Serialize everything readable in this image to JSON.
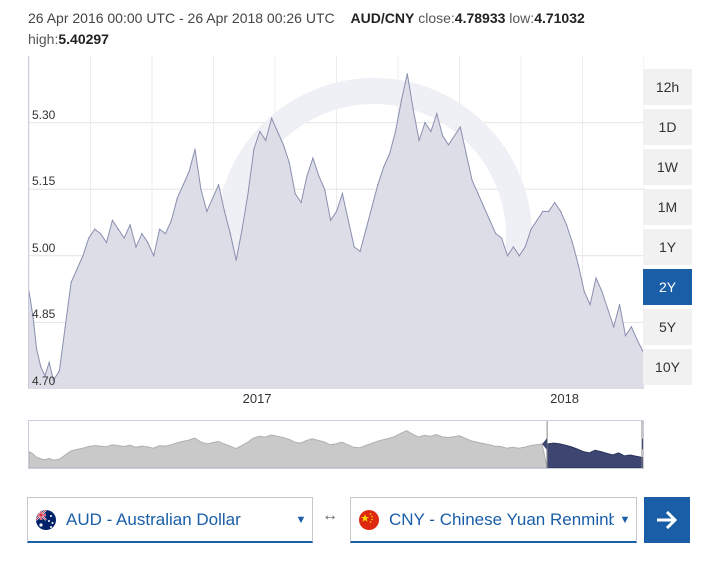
{
  "header": {
    "date_range": "26 Apr 2016 00:00 UTC - 26 Apr 2018 00:26 UTC",
    "pair": "AUD/CNY",
    "close_label": "close:",
    "close_value": "4.78933",
    "low_label": "low:",
    "low_value": "4.71032",
    "high_label": "high:",
    "high_value": "5.40297"
  },
  "range_buttons": [
    "12h",
    "1D",
    "1W",
    "1M",
    "1Y",
    "2Y",
    "5Y",
    "10Y"
  ],
  "active_range": "2Y",
  "from_currency": {
    "label": "AUD - Australian Dollar"
  },
  "to_currency": {
    "label": "CNY - Chinese Yuan Renminbi"
  },
  "swap_symbol": "↔",
  "colors": {
    "accent": "#1a5ea8",
    "area_fill": "#dcdde6",
    "line": "#8a8fb0"
  },
  "chart_data": {
    "type": "area",
    "title": "",
    "xlabel": "",
    "ylabel": "",
    "xlim": [
      "2016-04-26",
      "2018-04-26"
    ],
    "ylim": [
      4.7,
      5.45
    ],
    "yticks": [
      4.7,
      4.85,
      5.0,
      5.15,
      5.3
    ],
    "ytick_labels": [
      "4.70",
      "4.85",
      "5.00",
      "5.15",
      "5.30"
    ],
    "xticks": [
      "2017-01-01",
      "2018-01-01"
    ],
    "xtick_labels": [
      "2017",
      "2018"
    ],
    "grid": true,
    "series": [
      {
        "x": [
          "2016-04-26",
          "2016-05-01",
          "2016-05-05",
          "2016-05-10",
          "2016-05-15",
          "2016-05-20",
          "2016-05-25",
          "2016-06-01",
          "2016-06-08",
          "2016-06-15",
          "2016-06-22",
          "2016-06-29",
          "2016-07-06",
          "2016-07-13",
          "2016-07-20",
          "2016-07-27",
          "2016-08-03",
          "2016-08-10",
          "2016-08-17",
          "2016-08-24",
          "2016-08-31",
          "2016-09-07",
          "2016-09-14",
          "2016-09-21",
          "2016-09-28",
          "2016-10-05",
          "2016-10-12",
          "2016-10-19",
          "2016-10-26",
          "2016-11-02",
          "2016-11-09",
          "2016-11-16",
          "2016-11-23",
          "2016-11-30",
          "2016-12-07",
          "2016-12-14",
          "2016-12-21",
          "2016-12-28",
          "2017-01-04",
          "2017-01-11",
          "2017-01-18",
          "2017-01-25",
          "2017-02-01",
          "2017-02-08",
          "2017-02-15",
          "2017-02-22",
          "2017-03-01",
          "2017-03-08",
          "2017-03-15",
          "2017-03-22",
          "2017-03-29",
          "2017-04-05",
          "2017-04-12",
          "2017-04-19",
          "2017-04-26",
          "2017-05-03",
          "2017-05-10",
          "2017-05-17",
          "2017-05-24",
          "2017-05-31",
          "2017-06-07",
          "2017-06-14",
          "2017-06-21",
          "2017-06-28",
          "2017-07-05",
          "2017-07-12",
          "2017-07-19",
          "2017-07-26",
          "2017-08-02",
          "2017-08-09",
          "2017-08-16",
          "2017-08-23",
          "2017-08-30",
          "2017-09-06",
          "2017-09-13",
          "2017-09-20",
          "2017-09-27",
          "2017-10-04",
          "2017-10-11",
          "2017-10-18",
          "2017-10-25",
          "2017-11-01",
          "2017-11-08",
          "2017-11-15",
          "2017-11-22",
          "2017-11-29",
          "2017-12-06",
          "2017-12-13",
          "2017-12-20",
          "2017-12-27",
          "2018-01-03",
          "2018-01-10",
          "2018-01-17",
          "2018-01-24",
          "2018-01-31",
          "2018-02-07",
          "2018-02-14",
          "2018-02-21",
          "2018-02-28",
          "2018-03-07",
          "2018-03-14",
          "2018-03-21",
          "2018-03-28",
          "2018-04-04",
          "2018-04-11",
          "2018-04-18",
          "2018-04-26"
        ],
        "values": [
          4.92,
          4.86,
          4.79,
          4.75,
          4.73,
          4.76,
          4.72,
          4.74,
          4.84,
          4.94,
          4.97,
          5.0,
          5.04,
          5.06,
          5.05,
          5.03,
          5.08,
          5.06,
          5.04,
          5.07,
          5.02,
          5.05,
          5.03,
          5.0,
          5.06,
          5.05,
          5.08,
          5.13,
          5.16,
          5.19,
          5.24,
          5.15,
          5.1,
          5.13,
          5.16,
          5.1,
          5.05,
          4.99,
          5.06,
          5.14,
          5.24,
          5.28,
          5.26,
          5.31,
          5.28,
          5.25,
          5.21,
          5.14,
          5.12,
          5.18,
          5.22,
          5.18,
          5.15,
          5.08,
          5.1,
          5.14,
          5.08,
          5.02,
          5.01,
          5.06,
          5.11,
          5.16,
          5.2,
          5.23,
          5.28,
          5.35,
          5.41,
          5.33,
          5.26,
          5.3,
          5.28,
          5.32,
          5.27,
          5.25,
          5.27,
          5.29,
          5.23,
          5.17,
          5.14,
          5.11,
          5.08,
          5.05,
          5.04,
          5.0,
          5.02,
          5.0,
          5.02,
          5.06,
          5.08,
          5.1,
          5.1,
          5.12,
          5.1,
          5.07,
          5.03,
          4.98,
          4.92,
          4.89,
          4.95,
          4.92,
          4.88,
          4.84,
          4.89,
          4.82,
          4.84,
          4.81,
          4.78
        ]
      }
    ],
    "navigator": {
      "selected_range": [
        "2016-04-26",
        "2018-04-26"
      ]
    }
  }
}
